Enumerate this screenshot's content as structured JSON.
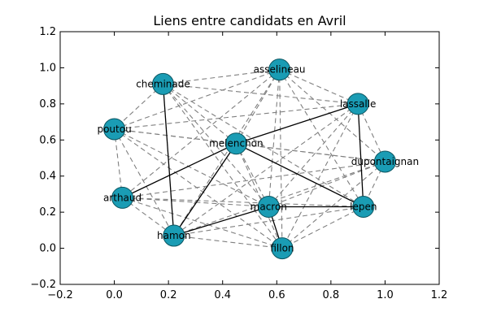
{
  "chart_data": {
    "type": "network",
    "title": "Liens entre candidats en Avril",
    "xlim": [
      -0.2,
      1.2
    ],
    "ylim": [
      -0.2,
      1.2
    ],
    "xticks": [
      "−0.2",
      "0.0",
      "0.2",
      "0.4",
      "0.6",
      "0.8",
      "1.0",
      "1.2"
    ],
    "yticks": [
      "−0.2",
      "0.0",
      "0.2",
      "0.4",
      "0.6",
      "0.8",
      "1.0",
      "1.2"
    ],
    "grid": false,
    "node_color": "#1a9cb4",
    "solid_edge_color": "#000000",
    "dashed_edge_color": "#808080",
    "nodes": [
      {
        "id": "asselineau",
        "x": 0.61,
        "y": 0.99
      },
      {
        "id": "cheminade",
        "x": 0.18,
        "y": 0.91
      },
      {
        "id": "lassalle",
        "x": 0.9,
        "y": 0.8
      },
      {
        "id": "poutou",
        "x": 0.0,
        "y": 0.66
      },
      {
        "id": "melenchon",
        "x": 0.45,
        "y": 0.58
      },
      {
        "id": "dupontaignan",
        "x": 1.0,
        "y": 0.48
      },
      {
        "id": "arthaud",
        "x": 0.03,
        "y": 0.28
      },
      {
        "id": "macron",
        "x": 0.57,
        "y": 0.23
      },
      {
        "id": "lepen",
        "x": 0.92,
        "y": 0.23
      },
      {
        "id": "hamon",
        "x": 0.22,
        "y": 0.07
      },
      {
        "id": "fillon",
        "x": 0.62,
        "y": 0.0
      }
    ],
    "solid_edges": [
      [
        "cheminade",
        "hamon"
      ],
      [
        "melenchon",
        "lassalle"
      ],
      [
        "melenchon",
        "arthaud"
      ],
      [
        "melenchon",
        "hamon"
      ],
      [
        "melenchon",
        "lepen"
      ],
      [
        "lassalle",
        "lepen"
      ],
      [
        "hamon",
        "macron"
      ],
      [
        "macron",
        "fillon"
      ],
      [
        "macron",
        "lepen"
      ]
    ],
    "dashed_edges": [
      [
        "asselineau",
        "cheminade"
      ],
      [
        "asselineau",
        "lassalle"
      ],
      [
        "asselineau",
        "poutou"
      ],
      [
        "asselineau",
        "melenchon"
      ],
      [
        "asselineau",
        "arthaud"
      ],
      [
        "asselineau",
        "macron"
      ],
      [
        "asselineau",
        "lepen"
      ],
      [
        "asselineau",
        "hamon"
      ],
      [
        "asselineau",
        "fillon"
      ],
      [
        "asselineau",
        "dupontaignan"
      ],
      [
        "cheminade",
        "lassalle"
      ],
      [
        "cheminade",
        "poutou"
      ],
      [
        "cheminade",
        "melenchon"
      ],
      [
        "cheminade",
        "macron"
      ],
      [
        "cheminade",
        "lepen"
      ],
      [
        "cheminade",
        "fillon"
      ],
      [
        "lassalle",
        "poutou"
      ],
      [
        "lassalle",
        "dupontaignan"
      ],
      [
        "lassalle",
        "macron"
      ],
      [
        "lassalle",
        "fillon"
      ],
      [
        "lassalle",
        "hamon"
      ],
      [
        "poutou",
        "melenchon"
      ],
      [
        "poutou",
        "arthaud"
      ],
      [
        "poutou",
        "macron"
      ],
      [
        "poutou",
        "hamon"
      ],
      [
        "poutou",
        "fillon"
      ],
      [
        "poutou",
        "dupontaignan"
      ],
      [
        "melenchon",
        "dupontaignan"
      ],
      [
        "melenchon",
        "macron"
      ],
      [
        "melenchon",
        "fillon"
      ],
      [
        "dupontaignan",
        "arthaud"
      ],
      [
        "dupontaignan",
        "macron"
      ],
      [
        "dupontaignan",
        "lepen"
      ],
      [
        "dupontaignan",
        "hamon"
      ],
      [
        "dupontaignan",
        "fillon"
      ],
      [
        "arthaud",
        "macron"
      ],
      [
        "arthaud",
        "lepen"
      ],
      [
        "arthaud",
        "hamon"
      ],
      [
        "arthaud",
        "fillon"
      ],
      [
        "hamon",
        "fillon"
      ],
      [
        "hamon",
        "lepen"
      ],
      [
        "lepen",
        "fillon"
      ]
    ]
  }
}
